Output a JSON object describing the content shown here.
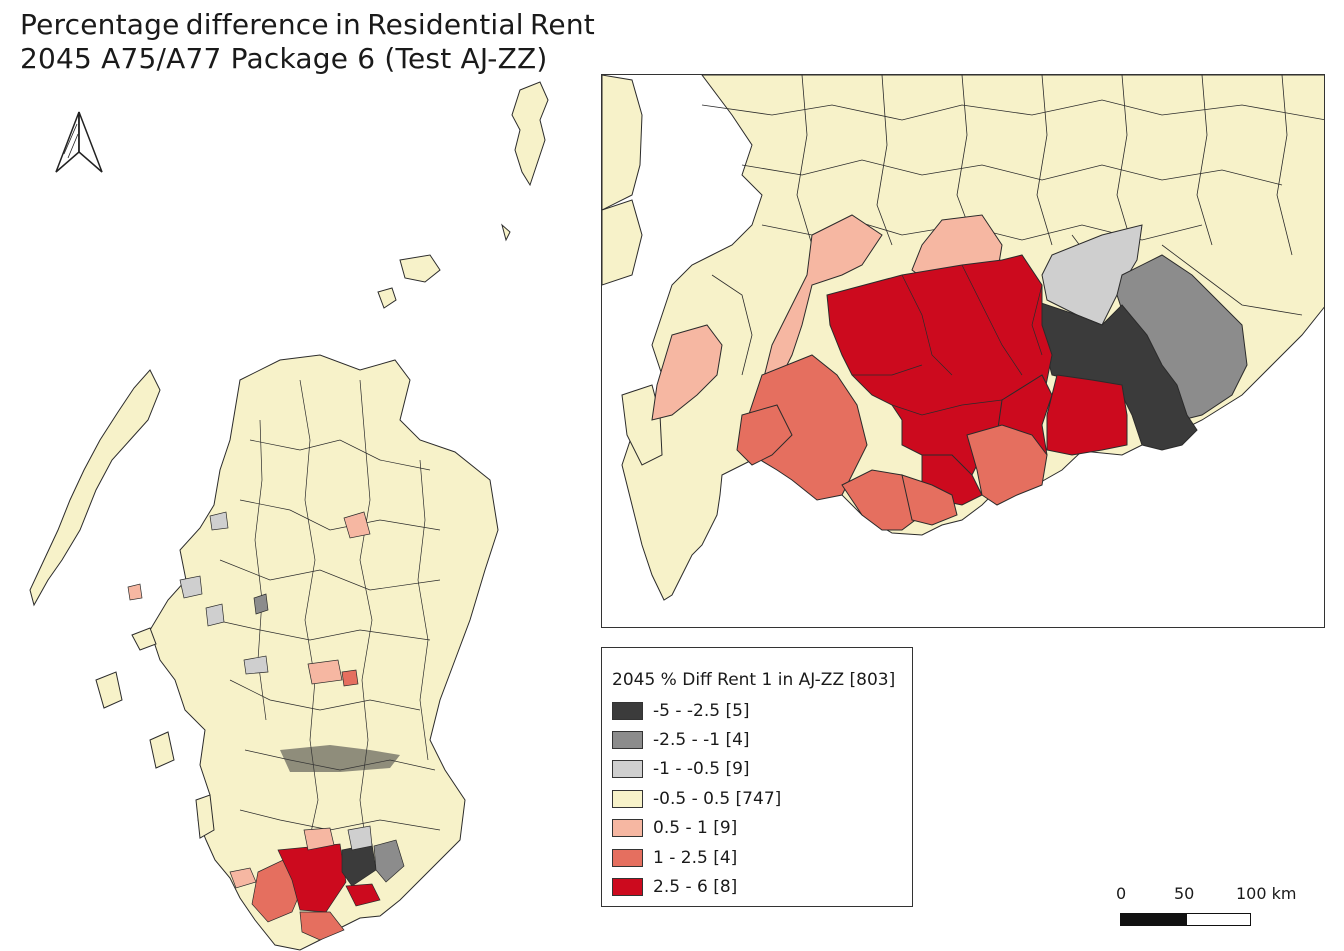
{
  "title": {
    "line1_words": [
      "Percentage",
      "difference",
      "in",
      "Residential",
      "Rent"
    ],
    "line2": "2045 A75/A77 Package 6 (Test AJ-ZZ)"
  },
  "north_arrow": {
    "icon": "north-arrow-icon"
  },
  "legend": {
    "title": "2045 % Diff Rent 1 in AJ-ZZ [803]",
    "items": [
      {
        "label": "-5 - -2.5 [5]",
        "color": "#3b3b3b"
      },
      {
        "label": "-2.5 - -1 [4]",
        "color": "#8c8c8c"
      },
      {
        "label": "-1 - -0.5 [9]",
        "color": "#cfcfcf"
      },
      {
        "label": "-0.5 - 0.5 [747]",
        "color": "#f7f2c9"
      },
      {
        "label": "0.5 - 1 [9]",
        "color": "#f6b7a2"
      },
      {
        "label": "1 - 2.5 [4]",
        "color": "#e56f5f"
      },
      {
        "label": "2.5 - 6 [8]",
        "color": "#cc0a1e"
      }
    ]
  },
  "scale_bar": {
    "labels": [
      "0",
      "50",
      "100 km"
    ]
  },
  "colors": {
    "land": "#f7f2c9",
    "boundary": "#2b2b2b",
    "sea": "#ffffff"
  }
}
